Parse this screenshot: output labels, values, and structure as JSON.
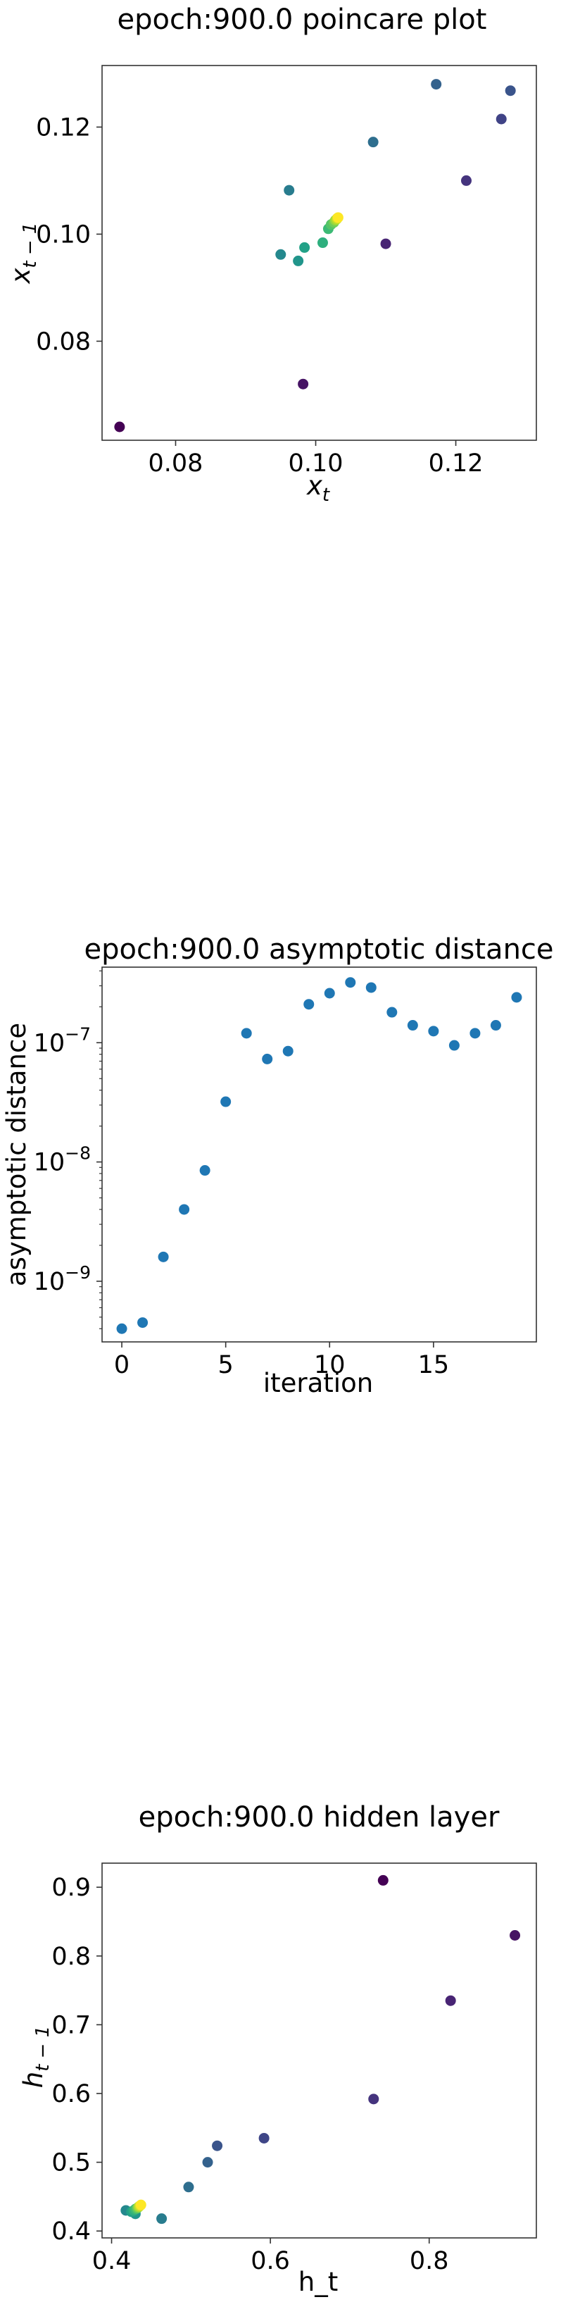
{
  "chart_data": [
    {
      "type": "scatter",
      "title": "epoch:900.0 poincare plot",
      "xlabel": "x_t",
      "ylabel": "x_{t-1}",
      "xlim": [
        0.0695,
        0.1315
      ],
      "ylim": [
        0.0615,
        0.1315
      ],
      "xticks": [
        0.08,
        0.1,
        0.12
      ],
      "xtick_labels": [
        "0.08",
        "0.10",
        "0.12"
      ],
      "yticks": [
        0.08,
        0.1,
        0.12
      ],
      "ytick_labels": [
        "0.08",
        "0.10",
        "0.12"
      ],
      "colormap": "viridis",
      "points": [
        {
          "x": 0.072,
          "y": 0.064,
          "c": 0.0
        },
        {
          "x": 0.0982,
          "y": 0.072,
          "c": 0.05
        },
        {
          "x": 0.11,
          "y": 0.0982,
          "c": 0.1
        },
        {
          "x": 0.1215,
          "y": 0.11,
          "c": 0.15
        },
        {
          "x": 0.1265,
          "y": 0.1215,
          "c": 0.2
        },
        {
          "x": 0.1278,
          "y": 0.1268,
          "c": 0.26
        },
        {
          "x": 0.1172,
          "y": 0.128,
          "c": 0.31
        },
        {
          "x": 0.1082,
          "y": 0.1172,
          "c": 0.36
        },
        {
          "x": 0.0962,
          "y": 0.1082,
          "c": 0.42
        },
        {
          "x": 0.095,
          "y": 0.0962,
          "c": 0.47
        },
        {
          "x": 0.0975,
          "y": 0.095,
          "c": 0.52
        },
        {
          "x": 0.0984,
          "y": 0.0975,
          "c": 0.57
        },
        {
          "x": 0.101,
          "y": 0.0984,
          "c": 0.63
        },
        {
          "x": 0.1018,
          "y": 0.101,
          "c": 0.68
        },
        {
          "x": 0.1022,
          "y": 0.1018,
          "c": 0.73
        },
        {
          "x": 0.1026,
          "y": 0.1022,
          "c": 0.78
        },
        {
          "x": 0.1028,
          "y": 0.1026,
          "c": 0.84
        },
        {
          "x": 0.103,
          "y": 0.1028,
          "c": 0.89
        },
        {
          "x": 0.1031,
          "y": 0.103,
          "c": 0.94
        },
        {
          "x": 0.1032,
          "y": 0.1031,
          "c": 1.0
        }
      ]
    },
    {
      "type": "scatter",
      "title": "epoch:900.0 asymptotic distance",
      "xlabel": "iteration",
      "ylabel": "asymptotic distance",
      "yscale": "log",
      "xlim": [
        -0.95,
        19.95
      ],
      "ylim": [
        3.1e-10,
        4.3e-07
      ],
      "xticks": [
        0,
        5,
        10,
        15
      ],
      "xtick_labels": [
        "0",
        "5",
        "10",
        "15"
      ],
      "yticks": [
        1e-09,
        1e-08,
        1e-07
      ],
      "ytick_labels": [
        "10",
        "10",
        "10"
      ],
      "ytick_exponents": [
        "−9",
        "−8",
        "−7"
      ],
      "color": "#1f77b4",
      "x": [
        0,
        1,
        2,
        3,
        4,
        5,
        6,
        7,
        8,
        9,
        10,
        11,
        12,
        13,
        14,
        15,
        16,
        17,
        18,
        19
      ],
      "y": [
        4e-10,
        4.5e-10,
        1.6e-09,
        4e-09,
        8.5e-09,
        3.2e-08,
        1.2e-07,
        7.3e-08,
        8.5e-08,
        2.1e-07,
        2.6e-07,
        3.2e-07,
        2.9e-07,
        1.8e-07,
        1.4e-07,
        1.25e-07,
        9.5e-08,
        1.2e-07,
        1.4e-07,
        2.4e-07
      ]
    },
    {
      "type": "scatter",
      "title": "epoch:900.0 hidden layer",
      "xlabel": "h_t",
      "ylabel": "h_{t-1}",
      "xlim": [
        0.388,
        0.935
      ],
      "ylim": [
        0.39,
        0.935
      ],
      "xticks": [
        0.4,
        0.6,
        0.8
      ],
      "xtick_labels": [
        "0.4",
        "0.6",
        "0.8"
      ],
      "yticks": [
        0.4,
        0.5,
        0.6,
        0.7,
        0.8,
        0.9
      ],
      "ytick_labels": [
        "0.4",
        "0.5",
        "0.6",
        "0.7",
        "0.8",
        "0.9"
      ],
      "colormap": "viridis",
      "points": [
        {
          "x": 0.742,
          "y": 0.91,
          "c": 0.0
        },
        {
          "x": 0.908,
          "y": 0.83,
          "c": 0.05
        },
        {
          "x": 0.827,
          "y": 0.735,
          "c": 0.1
        },
        {
          "x": 0.73,
          "y": 0.592,
          "c": 0.15
        },
        {
          "x": 0.592,
          "y": 0.535,
          "c": 0.21
        },
        {
          "x": 0.533,
          "y": 0.524,
          "c": 0.26
        },
        {
          "x": 0.521,
          "y": 0.5,
          "c": 0.31
        },
        {
          "x": 0.497,
          "y": 0.464,
          "c": 0.36
        },
        {
          "x": 0.463,
          "y": 0.418,
          "c": 0.42
        },
        {
          "x": 0.418,
          "y": 0.43,
          "c": 0.47
        },
        {
          "x": 0.43,
          "y": 0.425,
          "c": 0.52
        },
        {
          "x": 0.425,
          "y": 0.428,
          "c": 0.57
        },
        {
          "x": 0.428,
          "y": 0.43,
          "c": 0.63
        },
        {
          "x": 0.43,
          "y": 0.432,
          "c": 0.68
        },
        {
          "x": 0.432,
          "y": 0.433,
          "c": 0.73
        },
        {
          "x": 0.433,
          "y": 0.434,
          "c": 0.78
        },
        {
          "x": 0.434,
          "y": 0.435,
          "c": 0.84
        },
        {
          "x": 0.435,
          "y": 0.436,
          "c": 0.89
        },
        {
          "x": 0.436,
          "y": 0.437,
          "c": 0.94
        },
        {
          "x": 0.437,
          "y": 0.438,
          "c": 1.0
        }
      ]
    }
  ]
}
